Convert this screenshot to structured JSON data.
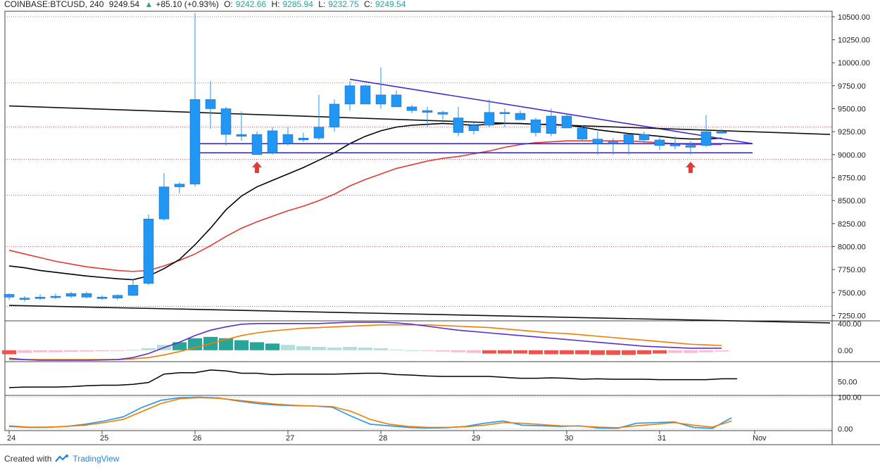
{
  "header": {
    "symbol": "COINBASE:BTCUSD, 240",
    "last": "9249.54",
    "change_arrow": "▲",
    "change": "+85.10 (+0.93%)",
    "o_label": "O:",
    "o_value": "9242.66",
    "h_label": "H:",
    "h_value": "9285.94",
    "l_label": "L:",
    "l_value": "9232.75",
    "c_label": "C:",
    "c_value": "9249.54"
  },
  "footer": {
    "created_with": "Created with",
    "brand": "TradingView"
  },
  "colors": {
    "bull": "#2196f3",
    "bear": "#2196f3",
    "ema_fast": "#000000",
    "ema_slow": "#e53935",
    "trend": "#5b2fd6",
    "channel": "#3d2bd9",
    "arrow": "#e53935",
    "macd_line": "#5b2fd6",
    "macd_signal": "#f57c00",
    "hist_pos_strong": "#26a69a",
    "hist_pos_weak": "#b2dfdb",
    "hist_neg_strong": "#ef5350",
    "hist_neg_weak": "#f8bbd0",
    "stoch_k": "#2196f3",
    "stoch_d": "#f57c00",
    "rsi": "#000000"
  },
  "chart_data": {
    "type": "candlestick",
    "price_axis": {
      "ticks": [
        "10500.00",
        "10250.00",
        "10000.00",
        "9750.00",
        "9500.00",
        "9250.00",
        "9000.00",
        "8750.00",
        "8500.00",
        "8250.00",
        "8000.00",
        "7750.00",
        "7500.00",
        "7250.00"
      ],
      "ylim": [
        7200,
        10560
      ]
    },
    "x_ticks": [
      "24",
      "25",
      "26",
      "27",
      "28",
      "29",
      "30",
      "31",
      "Nov"
    ],
    "candles": [
      [
        7450,
        7490,
        7420,
        7480
      ],
      [
        7430,
        7460,
        7400,
        7440
      ],
      [
        7440,
        7480,
        7420,
        7450
      ],
      [
        7450,
        7490,
        7430,
        7460
      ],
      [
        7460,
        7510,
        7440,
        7490
      ],
      [
        7490,
        7510,
        7440,
        7450
      ],
      [
        7450,
        7470,
        7420,
        7440
      ],
      [
        7440,
        7480,
        7420,
        7470
      ],
      [
        7470,
        7650,
        7460,
        7580
      ],
      [
        7600,
        8350,
        7580,
        8300
      ],
      [
        8300,
        8800,
        8280,
        8650
      ],
      [
        8650,
        8700,
        8580,
        8680
      ],
      [
        8680,
        10540,
        8650,
        9600
      ],
      [
        9600,
        9800,
        9280,
        9500
      ],
      [
        9500,
        9520,
        9100,
        9220
      ],
      [
        9220,
        9470,
        9150,
        9200
      ],
      [
        9000,
        9250,
        9000,
        9220
      ],
      [
        9020,
        9300,
        9000,
        9260
      ],
      [
        9120,
        9300,
        9100,
        9220
      ],
      [
        9160,
        9240,
        9140,
        9180
      ],
      [
        9180,
        9650,
        9160,
        9300
      ],
      [
        9300,
        9600,
        9250,
        9550
      ],
      [
        9550,
        9800,
        9480,
        9750
      ],
      [
        9750,
        9760,
        9550,
        9550
      ],
      [
        9550,
        9950,
        9500,
        9650
      ],
      [
        9650,
        9700,
        9550,
        9520
      ],
      [
        9520,
        9540,
        9450,
        9480
      ],
      [
        9480,
        9520,
        9300,
        9460
      ],
      [
        9460,
        9480,
        9380,
        9440
      ],
      [
        9400,
        9520,
        9200,
        9240
      ],
      [
        9260,
        9350,
        9220,
        9320
      ],
      [
        9320,
        9600,
        9300,
        9460
      ],
      [
        9460,
        9500,
        9300,
        9450
      ],
      [
        9450,
        9480,
        9380,
        9380
      ],
      [
        9380,
        9400,
        9200,
        9240
      ],
      [
        9230,
        9500,
        9200,
        9420
      ],
      [
        9420,
        9450,
        9300,
        9290
      ],
      [
        9290,
        9320,
        9150,
        9170
      ],
      [
        9170,
        9250,
        9000,
        9120
      ],
      [
        9120,
        9180,
        9000,
        9140
      ],
      [
        9120,
        9220,
        9000,
        9220
      ],
      [
        9220,
        9250,
        9120,
        9160
      ],
      [
        9160,
        9200,
        9050,
        9100
      ],
      [
        9100,
        9200,
        9060,
        9110
      ],
      [
        9080,
        9150,
        9000,
        9100
      ],
      [
        9100,
        9430,
        9080,
        9250
      ],
      [
        9240,
        9280,
        9232,
        9249
      ]
    ],
    "ema_fast": [
      7790,
      7770,
      7740,
      7720,
      7700,
      7680,
      7665,
      7650,
      7640,
      7680,
      7760,
      7860,
      8020,
      8200,
      8400,
      8550,
      8650,
      8720,
      8790,
      8860,
      8940,
      9020,
      9120,
      9200,
      9260,
      9300,
      9320,
      9330,
      9340,
      9330,
      9320,
      9330,
      9340,
      9340,
      9330,
      9330,
      9320,
      9300,
      9270,
      9250,
      9230,
      9215,
      9200,
      9180,
      9170,
      9170,
      9180
    ],
    "ema_slow": [
      7960,
      7920,
      7880,
      7840,
      7810,
      7780,
      7760,
      7740,
      7730,
      7740,
      7790,
      7850,
      7920,
      8010,
      8110,
      8200,
      8270,
      8330,
      8390,
      8440,
      8500,
      8570,
      8660,
      8730,
      8790,
      8850,
      8890,
      8930,
      8960,
      8980,
      9010,
      9040,
      9080,
      9110,
      9130,
      9140,
      9150,
      9150,
      9150,
      9150,
      9150,
      9140,
      9130,
      9120,
      9110,
      9110,
      9110
    ],
    "trendlines": [
      {
        "name": "descending-resistance",
        "from": [
          22,
          9820
        ],
        "to": [
          48,
          9120
        ]
      },
      {
        "name": "horizontal-upper",
        "from": [
          12,
          9120
        ],
        "to": [
          48,
          9120
        ]
      },
      {
        "name": "horizontal-lower",
        "from": [
          12,
          9020
        ],
        "to": [
          48,
          9020
        ]
      },
      {
        "name": "long-term-upper",
        "from": [
          0,
          9530
        ],
        "to": [
          53,
          9220
        ]
      },
      {
        "name": "long-term-lower",
        "from": [
          0,
          7360
        ],
        "to": [
          53,
          7170
        ]
      }
    ],
    "arrows": [
      16,
      44
    ],
    "macd": {
      "axis_ticks": [
        "400.00",
        "0.00"
      ],
      "ylim": [
        -150,
        430
      ],
      "line": [
        -120,
        -140,
        -150,
        -150,
        -150,
        -150,
        -145,
        -140,
        -110,
        -50,
        40,
        120,
        220,
        300,
        350,
        390,
        400,
        400,
        400,
        400,
        400,
        410,
        420,
        420,
        420,
        410,
        390,
        360,
        330,
        300,
        280,
        260,
        240,
        220,
        200,
        180,
        160,
        140,
        120,
        100,
        80,
        60,
        50,
        40,
        30,
        30,
        30
      ],
      "signal": [
        -140,
        -140,
        -140,
        -140,
        -140,
        -140,
        -140,
        -140,
        -130,
        -110,
        -70,
        -20,
        40,
        100,
        160,
        220,
        260,
        290,
        310,
        330,
        340,
        350,
        360,
        370,
        380,
        380,
        380,
        380,
        370,
        360,
        350,
        340,
        320,
        300,
        280,
        260,
        250,
        230,
        210,
        190,
        170,
        150,
        130,
        110,
        90,
        80,
        70
      ],
      "hist": [
        -60,
        -40,
        -30,
        -30,
        -25,
        -20,
        -15,
        -10,
        5,
        30,
        80,
        120,
        180,
        200,
        180,
        150,
        120,
        100,
        80,
        60,
        50,
        40,
        50,
        40,
        30,
        10,
        0,
        -10,
        -20,
        -30,
        -40,
        -50,
        -50,
        -50,
        -60,
        -60,
        -60,
        -60,
        -70,
        -70,
        -70,
        -60,
        -50,
        -40,
        -40,
        -30,
        -20
      ]
    },
    "rsi": {
      "axis_ticks": [
        "50.00"
      ],
      "ylim": [
        20,
        90
      ],
      "values": [
        37,
        38,
        38,
        38,
        39,
        41,
        42,
        42,
        44,
        48,
        66,
        69,
        69,
        75,
        73,
        68,
        68,
        65,
        66,
        66,
        66,
        66,
        67,
        68,
        68,
        65,
        64,
        62,
        61,
        61,
        61,
        61,
        59,
        57,
        57,
        58,
        57,
        55,
        56,
        55,
        55,
        55,
        54,
        54,
        54,
        54,
        56,
        56
      ]
    },
    "stoch": {
      "axis_ticks": [
        "100.00",
        "0.00"
      ],
      "ylim": [
        -5,
        105
      ],
      "k": [
        8,
        5,
        5,
        8,
        15,
        25,
        38,
        68,
        90,
        98,
        100,
        97,
        88,
        80,
        75,
        73,
        72,
        68,
        40,
        15,
        10,
        5,
        3,
        4,
        8,
        18,
        25,
        12,
        10,
        8,
        10,
        3,
        2,
        18,
        20,
        22,
        5,
        2,
        35
      ],
      "d": [
        10,
        6,
        6,
        8,
        12,
        20,
        30,
        55,
        80,
        95,
        98,
        96,
        90,
        84,
        78,
        74,
        72,
        70,
        55,
        30,
        15,
        8,
        5,
        5,
        7,
        12,
        20,
        18,
        14,
        10,
        9,
        6,
        4,
        10,
        15,
        20,
        12,
        6,
        25
      ]
    }
  }
}
